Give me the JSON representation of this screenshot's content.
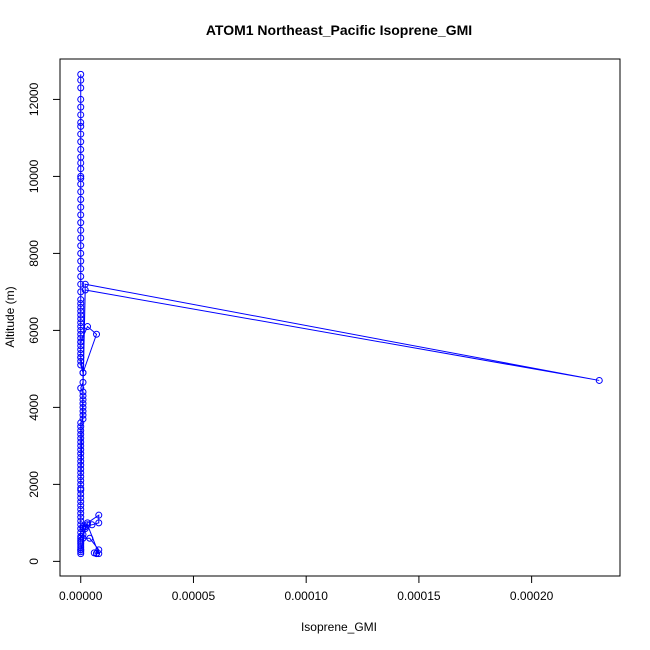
{
  "chart_data": {
    "type": "line",
    "title": "ATOM1 Northeast_Pacific Isoprene_GMI",
    "xlabel": "Isoprene_GMI",
    "ylabel": "Altitude (m)",
    "xlim": [
      -9.2e-06,
      0.0002392
    ],
    "ylim": [
      -380,
      13050
    ],
    "x_ticks": [
      0,
      5e-05,
      0.0001,
      0.00015,
      0.0002
    ],
    "x_tick_labels": [
      "0.00000",
      "0.00005",
      "0.00010",
      "0.00015",
      "0.00020"
    ],
    "y_ticks": [
      0,
      2000,
      4000,
      6000,
      8000,
      10000,
      12000
    ],
    "y_tick_labels": [
      "0",
      "2000",
      "4000",
      "6000",
      "8000",
      "10000",
      "12000"
    ],
    "grid": false,
    "series_color": "#0000ff",
    "series": [
      {
        "x": [
          0.0,
          0.0,
          0.0,
          0.0,
          0.0,
          0.0,
          0.0,
          0.0,
          0.0,
          0.0,
          0.0,
          0.0,
          0.0,
          0.0,
          0.0,
          0.0,
          0.0,
          0.0,
          0.0,
          0.0,
          0.0,
          0.0,
          0.0,
          0.0,
          0.0,
          0.0,
          0.0,
          0.0,
          0.0,
          0.0,
          0.0,
          0.0,
          0.0,
          0.0,
          0.0,
          0.0,
          0.0,
          0.0,
          0.0,
          0.0,
          0.0,
          0.0,
          0.0,
          0.0,
          0.0,
          0.0,
          0.0,
          0.0,
          0.0,
          1e-06,
          0.0,
          0.0,
          3e-06,
          7e-06,
          1e-06,
          1e-06,
          0.0,
          1e-06,
          1e-06,
          1e-06,
          1e-06,
          1e-06,
          1e-06,
          1e-06,
          1e-06,
          0.0,
          0.0,
          0.0,
          0.0,
          0.0,
          0.0,
          0.0,
          0.0,
          0.0,
          0.0,
          0.0,
          0.0,
          0.0,
          0.0,
          0.0,
          0.0,
          0.0,
          0.0,
          2e-06,
          0.00023,
          2e-06,
          0.0,
          0.0,
          0.0,
          0.0,
          0.0,
          0.0,
          0.0,
          0.0,
          0.0,
          0.0,
          0.0,
          0.0,
          0.0,
          0.0,
          0.0,
          0.0,
          0.0,
          0.0,
          2e-06,
          3e-06,
          8e-06,
          8e-06,
          5e-06,
          1e-06,
          1e-06,
          1e-06,
          4e-06,
          8e-06,
          7e-06,
          7e-06,
          6e-06,
          8e-06,
          3e-06,
          2e-06,
          1e-06,
          0.0,
          0.0,
          0.0,
          0.0,
          0.0
        ],
        "y": [
          12650,
          12500,
          12300,
          12000,
          11800,
          11600,
          11400,
          11300,
          11100,
          10900,
          10700,
          10500,
          10350,
          10200,
          10000,
          9950,
          9800,
          9600,
          9400,
          9200,
          9000,
          8800,
          8600,
          8400,
          8200,
          8000,
          7800,
          7600,
          7400,
          7200,
          7000,
          6800,
          6700,
          6600,
          6500,
          6400,
          6300,
          6200,
          6100,
          6000,
          5900,
          5800,
          5700,
          5600,
          5500,
          5400,
          5300,
          5200,
          5100,
          4900,
          5300,
          5700,
          6100,
          5900,
          4900,
          4650,
          4500,
          4400,
          4300,
          4200,
          4100,
          4000,
          3900,
          3800,
          3700,
          3600,
          3500,
          3400,
          3300,
          3200,
          3100,
          3000,
          2900,
          2800,
          2700,
          2600,
          2500,
          2400,
          2300,
          2200,
          2100,
          2000,
          1900,
          7200,
          4700,
          7050,
          1850,
          1750,
          1650,
          1550,
          1450,
          1350,
          1250,
          1150,
          1050,
          950,
          850,
          750,
          650,
          550,
          450,
          350,
          300,
          250,
          900,
          1000,
          1200,
          1000,
          950,
          900,
          860,
          600,
          600,
          300,
          200,
          210,
          220,
          200,
          950,
          850,
          700,
          600,
          500,
          400,
          300,
          200
        ]
      }
    ]
  }
}
